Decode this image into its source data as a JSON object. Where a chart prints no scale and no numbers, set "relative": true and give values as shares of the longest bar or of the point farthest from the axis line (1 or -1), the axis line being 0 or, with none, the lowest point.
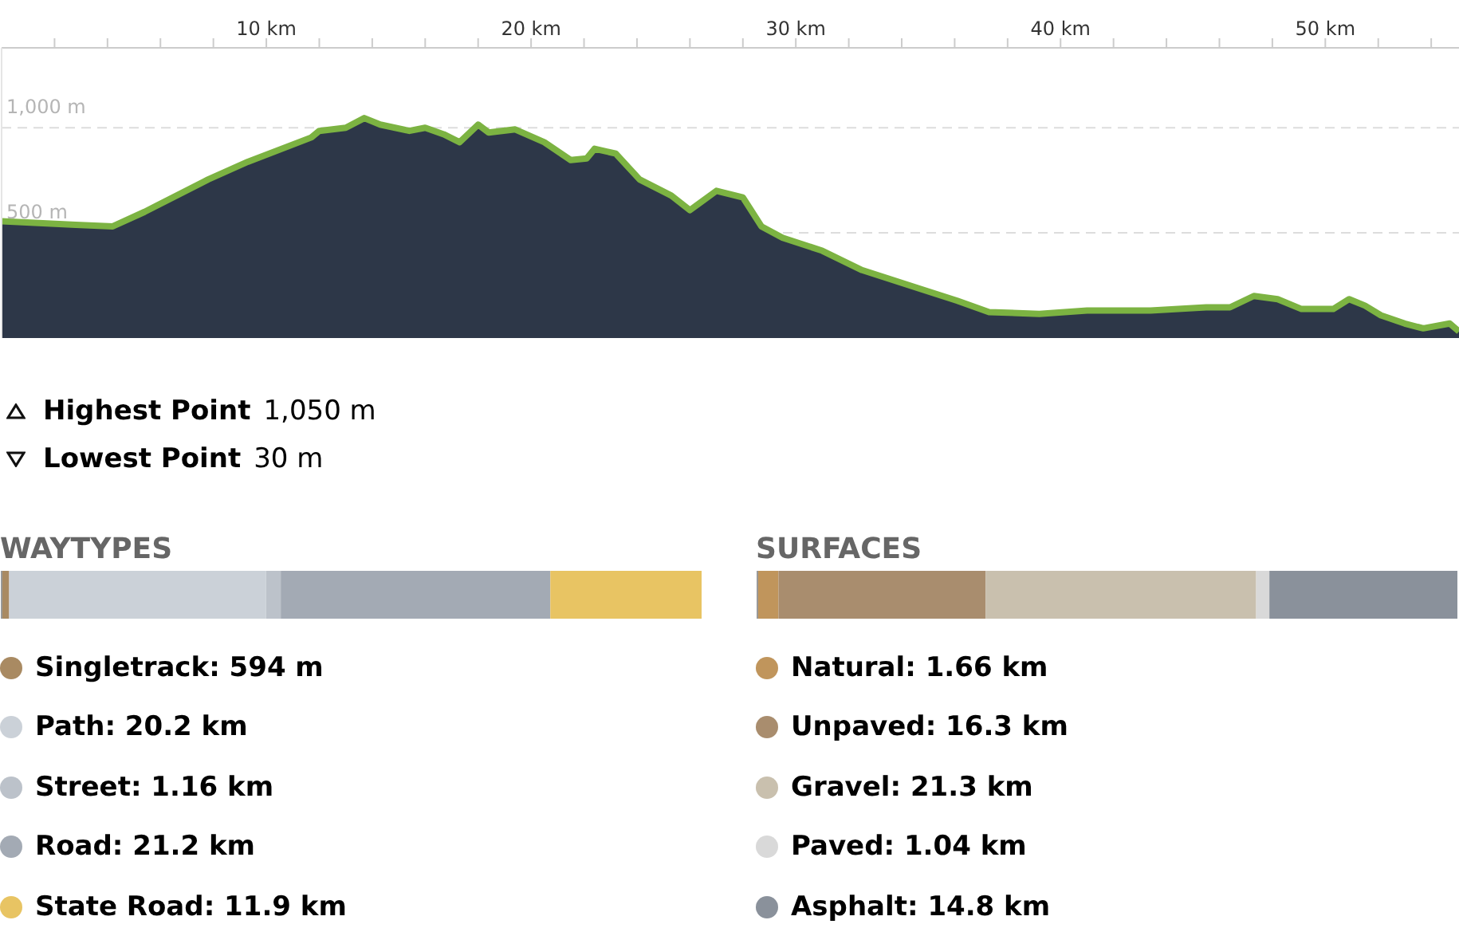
{
  "chart_data": [
    {
      "type": "area",
      "x": [
        0,
        2.8,
        4.2,
        5.4,
        7.8,
        9.3,
        11.7,
        12.0,
        13.0,
        13.7,
        14.3,
        15.4,
        16.0,
        16.7,
        17.3,
        18.0,
        18.4,
        19.4,
        20.5,
        21.5,
        22.1,
        22.4,
        23.2,
        24.1,
        25.3,
        26.0,
        27.0,
        28.0,
        28.7,
        29.5,
        31.0,
        32.5,
        34.6,
        36.1,
        37.3,
        39.2,
        41.0,
        43.4,
        45.5,
        46.4,
        47.3,
        48.2,
        49.1,
        50.3,
        50.9,
        51.5,
        52.1,
        53.0,
        53.7,
        54.7,
        55.05
      ],
      "series": [
        {
          "color": "#7cb342",
          "values": [
            555,
            538,
            531,
            600,
            754,
            838,
            954,
            985,
            1000,
            1046,
            1015,
            985,
            1000,
            969,
            931,
            1015,
            977,
            992,
            931,
            846,
            854,
            900,
            877,
            754,
            677,
            608,
            700,
            669,
            531,
            477,
            415,
            323,
            238,
            177,
            123,
            115,
            131,
            131,
            146,
            146,
            200,
            185,
            138,
            138,
            185,
            154,
            108,
            69,
            46,
            69,
            31
          ]
        }
      ],
      "xlim": [
        0,
        55.05
      ],
      "xticks": [
        {
          "value": 2,
          "label": null
        },
        {
          "value": 4,
          "label": null
        },
        {
          "value": 6,
          "label": null
        },
        {
          "value": 8,
          "label": null
        },
        {
          "value": 10,
          "label": "10 km"
        },
        {
          "value": 12,
          "label": null
        },
        {
          "value": 14,
          "label": null
        },
        {
          "value": 16,
          "label": null
        },
        {
          "value": 18,
          "label": null
        },
        {
          "value": 20,
          "label": "20 km"
        },
        {
          "value": 22,
          "label": null
        },
        {
          "value": 24,
          "label": null
        },
        {
          "value": 26,
          "label": null
        },
        {
          "value": 28,
          "label": null
        },
        {
          "value": 30,
          "label": "30 km"
        },
        {
          "value": 32,
          "label": null
        },
        {
          "value": 34,
          "label": null
        },
        {
          "value": 36,
          "label": null
        },
        {
          "value": 38,
          "label": null
        },
        {
          "value": 40,
          "label": "40 km"
        },
        {
          "value": 42,
          "label": null
        },
        {
          "value": 44,
          "label": null
        },
        {
          "value": 46,
          "label": null
        },
        {
          "value": 48,
          "label": null
        },
        {
          "value": 50,
          "label": "50 km"
        },
        {
          "value": 52,
          "label": null
        },
        {
          "value": 54,
          "label": null
        }
      ],
      "ylim": [
        0,
        1380
      ],
      "yticks": [
        {
          "value": 500,
          "label": "500 m"
        },
        {
          "value": 1000,
          "label": "1,000 m"
        }
      ],
      "grid": "y",
      "line_style": "solid",
      "marker": "none"
    },
    {
      "type": "other",
      "annotations": [
        "Highest Point",
        "1,050 m",
        "Lowest Point",
        "30 m"
      ]
    },
    {
      "type": "bar",
      "title": "WAYTYPES",
      "orientation": "horizontal",
      "stacked": true,
      "relative": true,
      "categories": [
        null
      ],
      "legend": "bottom",
      "series": [
        {
          "name": "Singletrack: 594 m",
          "color": "#a98a62",
          "values": [
            0.0108
          ]
        },
        {
          "name": "Path: 20.2 km",
          "color": "#cbd1d8",
          "values": [
            0.3669
          ]
        },
        {
          "name": "Street: 1.16 km",
          "color": "#bcc2ca",
          "values": [
            0.0211
          ]
        },
        {
          "name": "Road: 21.2 km",
          "color": "#a3aab4",
          "values": [
            0.3851
          ]
        },
        {
          "name": "State Road: 11.9 km",
          "color": "#e8c463",
          "values": [
            0.2161
          ]
        }
      ]
    },
    {
      "type": "bar",
      "title": "SURFACES",
      "orientation": "horizontal",
      "stacked": true,
      "relative": true,
      "categories": [
        null
      ],
      "legend": "bottom",
      "series": [
        {
          "name": "Natural: 1.66 km",
          "color": "#c0955c",
          "values": [
            0.0301
          ]
        },
        {
          "name": "Unpaved: 16.3 km",
          "color": "#a98d6e",
          "values": [
            0.2958
          ]
        },
        {
          "name": "Gravel: 21.3 km",
          "color": "#c9c0ae",
          "values": [
            0.3866
          ]
        },
        {
          "name": "Paved: 1.04 km",
          "color": "#d9d9d9",
          "values": [
            0.0189
          ]
        },
        {
          "name": "Asphalt: 14.8 km",
          "color": "#8a919b",
          "values": [
            0.2686
          ]
        }
      ]
    }
  ]
}
